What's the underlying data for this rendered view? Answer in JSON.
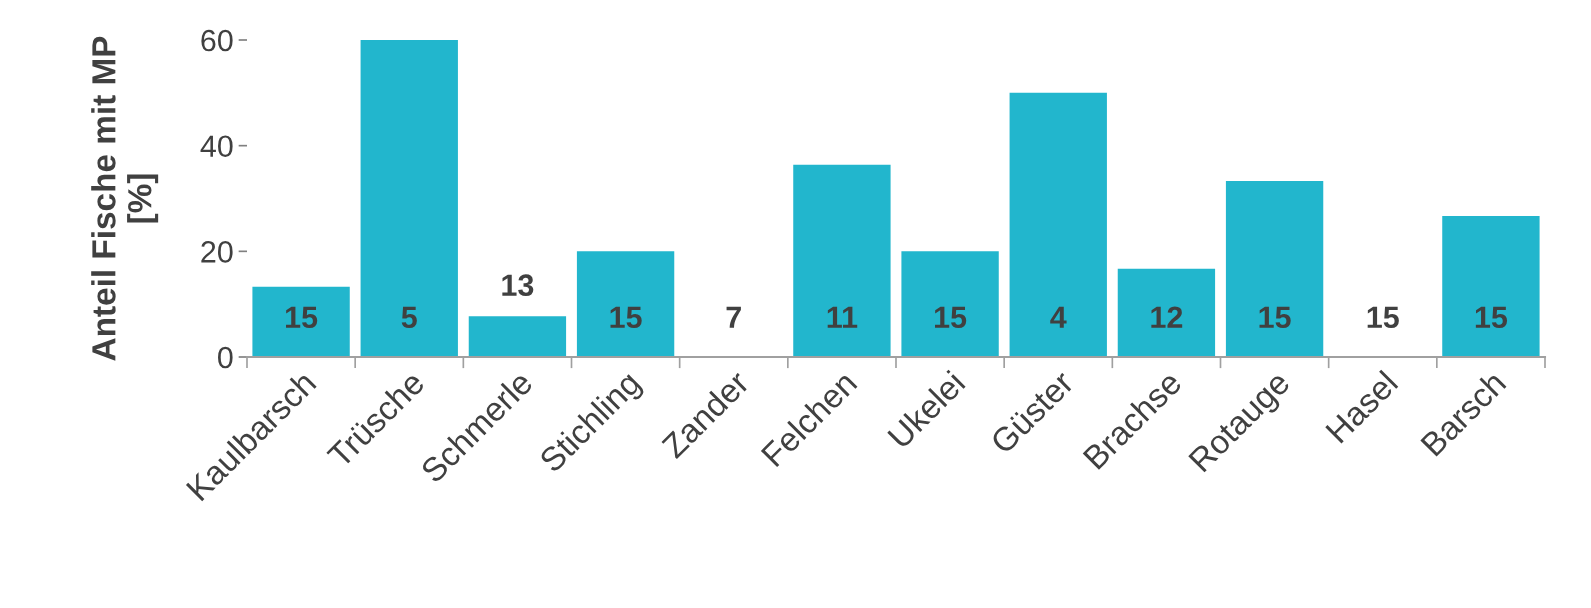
{
  "chart_data": {
    "type": "bar",
    "ylabel": "Anteil Fische mit MP\n[%]",
    "categories": [
      "Kaulbarsch",
      "Trüsche",
      "Schmerle",
      "Stichling",
      "Zander",
      "Felchen",
      "Ukelei",
      "Güster",
      "Brachse",
      "Rotauge",
      "Hasel",
      "Barsch"
    ],
    "values": [
      13.3,
      60,
      7.7,
      20,
      0,
      36.4,
      20,
      50,
      16.7,
      33.3,
      0,
      26.7
    ],
    "annotations": [
      "15",
      "5",
      "13",
      "15",
      "7",
      "11",
      "15",
      "4",
      "12",
      "15",
      "15",
      "15"
    ],
    "color": "#22b6cd",
    "ylim": [
      0,
      60
    ],
    "yticks": [
      0,
      20,
      40,
      60
    ],
    "grid": false,
    "legend": false
  }
}
